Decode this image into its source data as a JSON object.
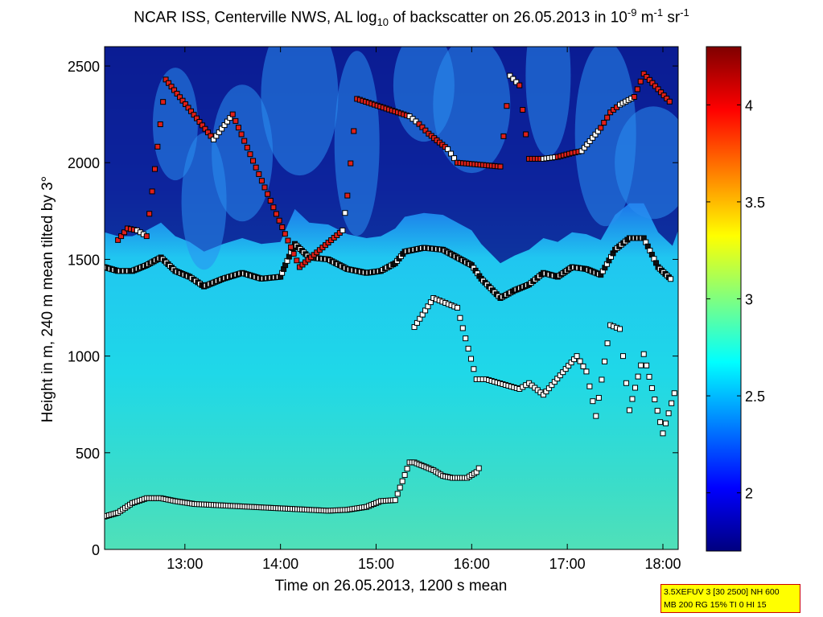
{
  "title": {
    "text_pre": "NCAR ISS, Centerville NWS, AL log",
    "sub": "10",
    "text_mid": " of backscatter on 26.05.2013 in 10",
    "sup1": "-9",
    "text_unit1": " m",
    "sup2": "-1",
    "text_unit2": " sr",
    "sup3": "-1"
  },
  "info_box": {
    "line1": "3.5XEFUV 3 [30 2500] NH 600",
    "line2": "MB 200 RG 15% TI 0 HI 15",
    "background": "#ffff00",
    "border": "#cc0000"
  },
  "chart_data": {
    "type": "heatmap",
    "xlabel": "Time on 26.05.2013, 1200 s mean",
    "ylabel": "Height in m, 240 m mean tilted by 3°",
    "xlim": [
      12.16,
      18.16
    ],
    "ylim": [
      0,
      2600
    ],
    "xticks": [
      {
        "value": 13,
        "label": "13:00"
      },
      {
        "value": 14,
        "label": "14:00"
      },
      {
        "value": 15,
        "label": "15:00"
      },
      {
        "value": 16,
        "label": "16:00"
      },
      {
        "value": 17,
        "label": "17:00"
      },
      {
        "value": 18,
        "label": "18:00"
      }
    ],
    "yticks": [
      {
        "value": 0,
        "label": "0"
      },
      {
        "value": 500,
        "label": "500"
      },
      {
        "value": 1000,
        "label": "1000"
      },
      {
        "value": 1500,
        "label": "1500"
      },
      {
        "value": 2000,
        "label": "2000"
      },
      {
        "value": 2500,
        "label": "2500"
      }
    ],
    "colorbar": {
      "range": [
        1.7,
        4.3
      ],
      "colormap": "jet",
      "ticks": [
        {
          "value": 2,
          "label": "2"
        },
        {
          "value": 2.5,
          "label": "2.5"
        },
        {
          "value": 3,
          "label": "3"
        },
        {
          "value": 3.5,
          "label": "3.5"
        },
        {
          "value": 4,
          "label": "4"
        }
      ]
    },
    "mixing_layer_top": {
      "time": [
        12.16,
        12.3,
        12.45,
        12.6,
        12.75,
        12.9,
        13.05,
        13.2,
        13.4,
        13.6,
        13.8,
        14.0,
        14.05,
        14.15,
        14.3,
        14.5,
        14.7,
        14.9,
        15.05,
        15.2,
        15.3,
        15.5,
        15.7,
        15.85,
        16.0,
        16.1,
        16.3,
        16.45,
        16.6,
        16.75,
        16.9,
        17.05,
        17.2,
        17.35,
        17.5,
        17.65,
        17.8,
        17.95,
        18.1
      ],
      "height": [
        1460,
        1440,
        1440,
        1470,
        1510,
        1440,
        1410,
        1360,
        1400,
        1430,
        1400,
        1410,
        1470,
        1580,
        1510,
        1500,
        1450,
        1430,
        1440,
        1480,
        1540,
        1560,
        1550,
        1510,
        1470,
        1400,
        1300,
        1340,
        1370,
        1430,
        1410,
        1460,
        1450,
        1420,
        1550,
        1610,
        1610,
        1460,
        1390
      ]
    },
    "upper_layer": {
      "time": [
        12.3,
        12.4,
        12.5,
        12.6,
        12.8,
        13.3,
        13.5,
        14.2,
        14.65,
        14.7,
        14.8,
        15.35,
        15.45,
        15.55,
        15.75,
        15.85,
        16.3,
        16.4,
        16.5,
        16.6,
        16.75,
        16.9,
        17.05,
        17.15,
        17.35,
        17.45,
        17.55,
        17.7,
        17.8,
        18.1
      ],
      "height": [
        1600,
        1660,
        1650,
        1620,
        2430,
        2120,
        2250,
        1460,
        1650,
        1830,
        2330,
        2240,
        2200,
        2150,
        2070,
        2000,
        1980,
        2450,
        2400,
        2020,
        2020,
        2030,
        2050,
        2060,
        2180,
        2260,
        2300,
        2340,
        2460,
        2300
      ]
    },
    "cloud_base": {
      "time": [
        15.4,
        15.6,
        15.85,
        16.05,
        16.15,
        16.5,
        16.6,
        16.75,
        17.1,
        17.2,
        17.3,
        17.45,
        17.55,
        17.65,
        17.8,
        18.0,
        18.15
      ],
      "height": [
        1150,
        1300,
        1250,
        880,
        880,
        830,
        860,
        800,
        1000,
        920,
        690,
        1160,
        1140,
        720,
        1010,
        600,
        860
      ]
    },
    "lower_layer": {
      "time": [
        12.16,
        12.3,
        12.45,
        12.6,
        12.75,
        12.9,
        13.1,
        13.3,
        13.5,
        13.7,
        13.9,
        14.1,
        14.3,
        14.5,
        14.7,
        14.9,
        15.05,
        15.2,
        15.35,
        15.4,
        15.5,
        15.6,
        15.7,
        15.8,
        15.95,
        16.05,
        16.1
      ],
      "height": [
        170,
        190,
        240,
        265,
        265,
        250,
        235,
        230,
        225,
        220,
        215,
        210,
        205,
        200,
        205,
        220,
        250,
        255,
        450,
        450,
        430,
        410,
        380,
        370,
        370,
        400,
        440
      ]
    }
  }
}
